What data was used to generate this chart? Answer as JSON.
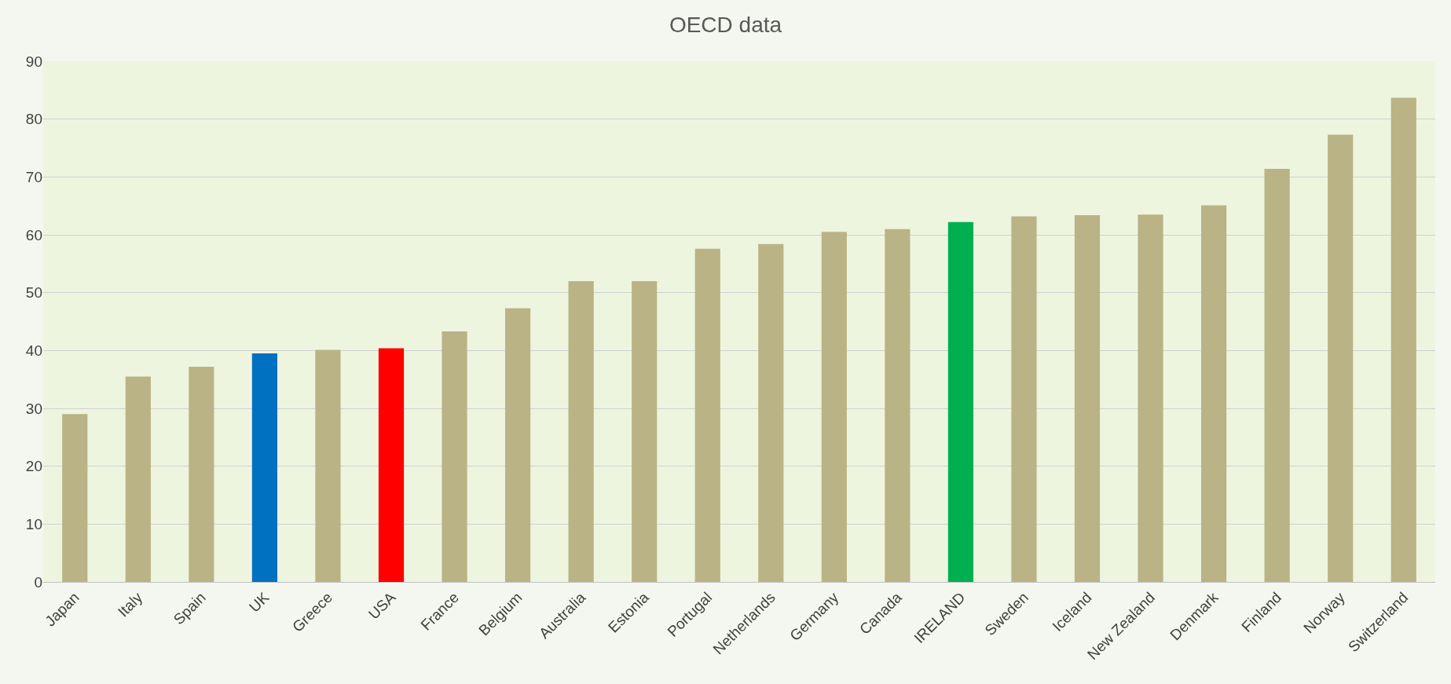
{
  "chart_data": {
    "type": "bar",
    "title": "OECD data",
    "categories": [
      "Japan",
      "Italy",
      "Spain",
      "UK",
      "Greece",
      "USA",
      "France",
      "Belgium",
      "Australia",
      "Estonia",
      "Portugal",
      "Netherlands",
      "Germany",
      "Canada",
      "IRELAND",
      "Sweden",
      "Iceland",
      "New Zealand",
      "Denmark",
      "Finland",
      "Norway",
      "Switzerland"
    ],
    "values": [
      29.0,
      35.5,
      37.2,
      39.5,
      40.1,
      40.4,
      43.3,
      47.3,
      52.0,
      52.0,
      57.6,
      58.4,
      60.5,
      61.0,
      62.2,
      63.2,
      63.4,
      63.5,
      65.1,
      71.4,
      77.3,
      83.7
    ],
    "colors": [
      "#bab386",
      "#bab386",
      "#bab386",
      "#0070c0",
      "#bab386",
      "#ff0000",
      "#bab386",
      "#bab386",
      "#bab386",
      "#bab386",
      "#bab386",
      "#bab386",
      "#bab386",
      "#bab386",
      "#00b050",
      "#bab386",
      "#bab386",
      "#bab386",
      "#bab386",
      "#bab386",
      "#bab386",
      "#bab386"
    ],
    "ylim": [
      0,
      90
    ],
    "yticks": [
      0,
      10,
      20,
      30,
      40,
      50,
      60,
      70,
      80,
      90
    ],
    "grid": "y"
  }
}
